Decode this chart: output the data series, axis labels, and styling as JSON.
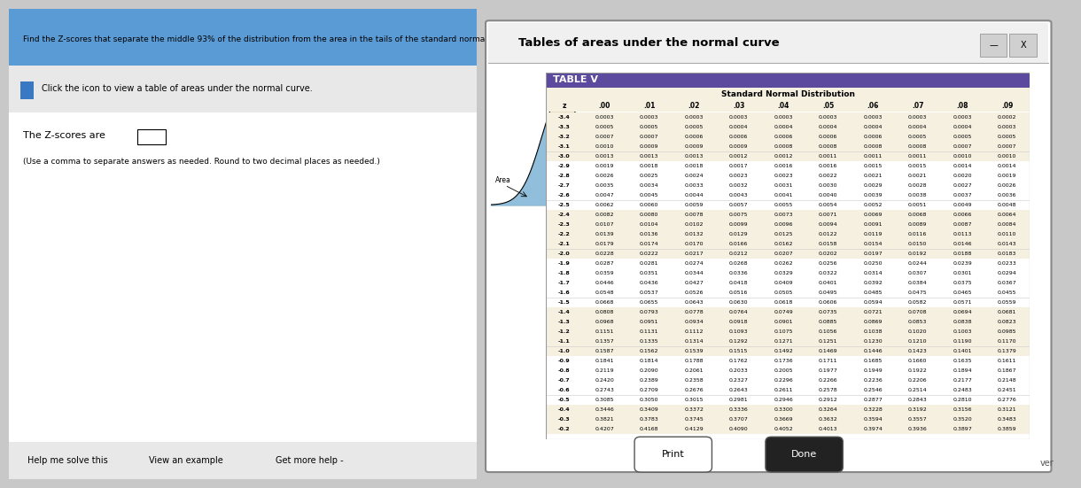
{
  "title_main": "Find the Z-scores that separate the middle 93% of the distribution from the area in the tails of the standard normal distribution.",
  "click_text": "Click the icon to view a table of areas under the normal curve.",
  "z_scores_label": "The Z-scores are",
  "instruction": "(Use a comma to separate answers as needed. Round to two decimal places as needed.)",
  "table_title": "Tables of areas under the normal curve",
  "table_v_header": "TABLE V",
  "table_subtitle": "Standard Normal Distribution",
  "col_headers": [
    "z",
    ".00",
    ".01",
    ".02",
    ".03",
    ".04",
    ".05",
    ".06",
    ".07",
    ".08",
    ".09"
  ],
  "bottom_buttons": [
    "Help me solve this",
    "View an example",
    "Get more help -"
  ],
  "right_buttons": [
    "Print",
    "Done"
  ],
  "bg_color": "#e8e8e8",
  "table_header_bg": "#6b5b9e",
  "rows": [
    [
      "-3.4",
      "0.0003",
      "0.0003",
      "0.0003",
      "0.0003",
      "0.0003",
      "0.0003",
      "0.0003",
      "0.0003",
      "0.0003",
      "0.0002"
    ],
    [
      "-3.3",
      "0.0005",
      "0.0005",
      "0.0005",
      "0.0004",
      "0.0004",
      "0.0004",
      "0.0004",
      "0.0004",
      "0.0004",
      "0.0003"
    ],
    [
      "-3.2",
      "0.0007",
      "0.0007",
      "0.0006",
      "0.0006",
      "0.0006",
      "0.0006",
      "0.0006",
      "0.0005",
      "0.0005",
      "0.0005"
    ],
    [
      "-3.1",
      "0.0010",
      "0.0009",
      "0.0009",
      "0.0009",
      "0.0008",
      "0.0008",
      "0.0008",
      "0.0008",
      "0.0007",
      "0.0007"
    ],
    [
      "-3.0",
      "0.0013",
      "0.0013",
      "0.0013",
      "0.0012",
      "0.0012",
      "0.0011",
      "0.0011",
      "0.0011",
      "0.0010",
      "0.0010"
    ],
    [
      "-2.9",
      "0.0019",
      "0.0018",
      "0.0018",
      "0.0017",
      "0.0016",
      "0.0016",
      "0.0015",
      "0.0015",
      "0.0014",
      "0.0014"
    ],
    [
      "-2.8",
      "0.0026",
      "0.0025",
      "0.0024",
      "0.0023",
      "0.0023",
      "0.0022",
      "0.0021",
      "0.0021",
      "0.0020",
      "0.0019"
    ],
    [
      "-2.7",
      "0.0035",
      "0.0034",
      "0.0033",
      "0.0032",
      "0.0031",
      "0.0030",
      "0.0029",
      "0.0028",
      "0.0027",
      "0.0026"
    ],
    [
      "-2.6",
      "0.0047",
      "0.0045",
      "0.0044",
      "0.0043",
      "0.0041",
      "0.0040",
      "0.0039",
      "0.0038",
      "0.0037",
      "0.0036"
    ],
    [
      "-2.5",
      "0.0062",
      "0.0060",
      "0.0059",
      "0.0057",
      "0.0055",
      "0.0054",
      "0.0052",
      "0.0051",
      "0.0049",
      "0.0048"
    ],
    [
      "-2.4",
      "0.0082",
      "0.0080",
      "0.0078",
      "0.0075",
      "0.0073",
      "0.0071",
      "0.0069",
      "0.0068",
      "0.0066",
      "0.0064"
    ],
    [
      "-2.3",
      "0.0107",
      "0.0104",
      "0.0102",
      "0.0099",
      "0.0096",
      "0.0094",
      "0.0091",
      "0.0089",
      "0.0087",
      "0.0084"
    ],
    [
      "-2.2",
      "0.0139",
      "0.0136",
      "0.0132",
      "0.0129",
      "0.0125",
      "0.0122",
      "0.0119",
      "0.0116",
      "0.0113",
      "0.0110"
    ],
    [
      "-2.1",
      "0.0179",
      "0.0174",
      "0.0170",
      "0.0166",
      "0.0162",
      "0.0158",
      "0.0154",
      "0.0150",
      "0.0146",
      "0.0143"
    ],
    [
      "-2.0",
      "0.0228",
      "0.0222",
      "0.0217",
      "0.0212",
      "0.0207",
      "0.0202",
      "0.0197",
      "0.0192",
      "0.0188",
      "0.0183"
    ],
    [
      "-1.9",
      "0.0287",
      "0.0281",
      "0.0274",
      "0.0268",
      "0.0262",
      "0.0256",
      "0.0250",
      "0.0244",
      "0.0239",
      "0.0233"
    ],
    [
      "-1.8",
      "0.0359",
      "0.0351",
      "0.0344",
      "0.0336",
      "0.0329",
      "0.0322",
      "0.0314",
      "0.0307",
      "0.0301",
      "0.0294"
    ],
    [
      "-1.7",
      "0.0446",
      "0.0436",
      "0.0427",
      "0.0418",
      "0.0409",
      "0.0401",
      "0.0392",
      "0.0384",
      "0.0375",
      "0.0367"
    ],
    [
      "-1.6",
      "0.0548",
      "0.0537",
      "0.0526",
      "0.0516",
      "0.0505",
      "0.0495",
      "0.0485",
      "0.0475",
      "0.0465",
      "0.0455"
    ],
    [
      "-1.5",
      "0.0668",
      "0.0655",
      "0.0643",
      "0.0630",
      "0.0618",
      "0.0606",
      "0.0594",
      "0.0582",
      "0.0571",
      "0.0559"
    ],
    [
      "-1.4",
      "0.0808",
      "0.0793",
      "0.0778",
      "0.0764",
      "0.0749",
      "0.0735",
      "0.0721",
      "0.0708",
      "0.0694",
      "0.0681"
    ],
    [
      "-1.3",
      "0.0968",
      "0.0951",
      "0.0934",
      "0.0918",
      "0.0901",
      "0.0885",
      "0.0869",
      "0.0853",
      "0.0838",
      "0.0823"
    ],
    [
      "-1.2",
      "0.1151",
      "0.1131",
      "0.1112",
      "0.1093",
      "0.1075",
      "0.1056",
      "0.1038",
      "0.1020",
      "0.1003",
      "0.0985"
    ],
    [
      "-1.1",
      "0.1357",
      "0.1335",
      "0.1314",
      "0.1292",
      "0.1271",
      "0.1251",
      "0.1230",
      "0.1210",
      "0.1190",
      "0.1170"
    ],
    [
      "-1.0",
      "0.1587",
      "0.1562",
      "0.1539",
      "0.1515",
      "0.1492",
      "0.1469",
      "0.1446",
      "0.1423",
      "0.1401",
      "0.1379"
    ],
    [
      "-0.9",
      "0.1841",
      "0.1814",
      "0.1788",
      "0.1762",
      "0.1736",
      "0.1711",
      "0.1685",
      "0.1660",
      "0.1635",
      "0.1611"
    ],
    [
      "-0.8",
      "0.2119",
      "0.2090",
      "0.2061",
      "0.2033",
      "0.2005",
      "0.1977",
      "0.1949",
      "0.1922",
      "0.1894",
      "0.1867"
    ],
    [
      "-0.7",
      "0.2420",
      "0.2389",
      "0.2358",
      "0.2327",
      "0.2296",
      "0.2266",
      "0.2236",
      "0.2206",
      "0.2177",
      "0.2148"
    ],
    [
      "-0.6",
      "0.2743",
      "0.2709",
      "0.2676",
      "0.2643",
      "0.2611",
      "0.2578",
      "0.2546",
      "0.2514",
      "0.2483",
      "0.2451"
    ],
    [
      "-0.5",
      "0.3085",
      "0.3050",
      "0.3015",
      "0.2981",
      "0.2946",
      "0.2912",
      "0.2877",
      "0.2843",
      "0.2810",
      "0.2776"
    ],
    [
      "-0.4",
      "0.3446",
      "0.3409",
      "0.3372",
      "0.3336",
      "0.3300",
      "0.3264",
      "0.3228",
      "0.3192",
      "0.3156",
      "0.3121"
    ],
    [
      "-0.3",
      "0.3821",
      "0.3783",
      "0.3745",
      "0.3707",
      "0.3669",
      "0.3632",
      "0.3594",
      "0.3557",
      "0.3520",
      "0.3483"
    ],
    [
      "-0.2",
      "0.4207",
      "0.4168",
      "0.4129",
      "0.4090",
      "0.4052",
      "0.4013",
      "0.3974",
      "0.3936",
      "0.3897",
      "0.3859"
    ]
  ],
  "group_separators": [
    4,
    9,
    14,
    19,
    24,
    29
  ]
}
